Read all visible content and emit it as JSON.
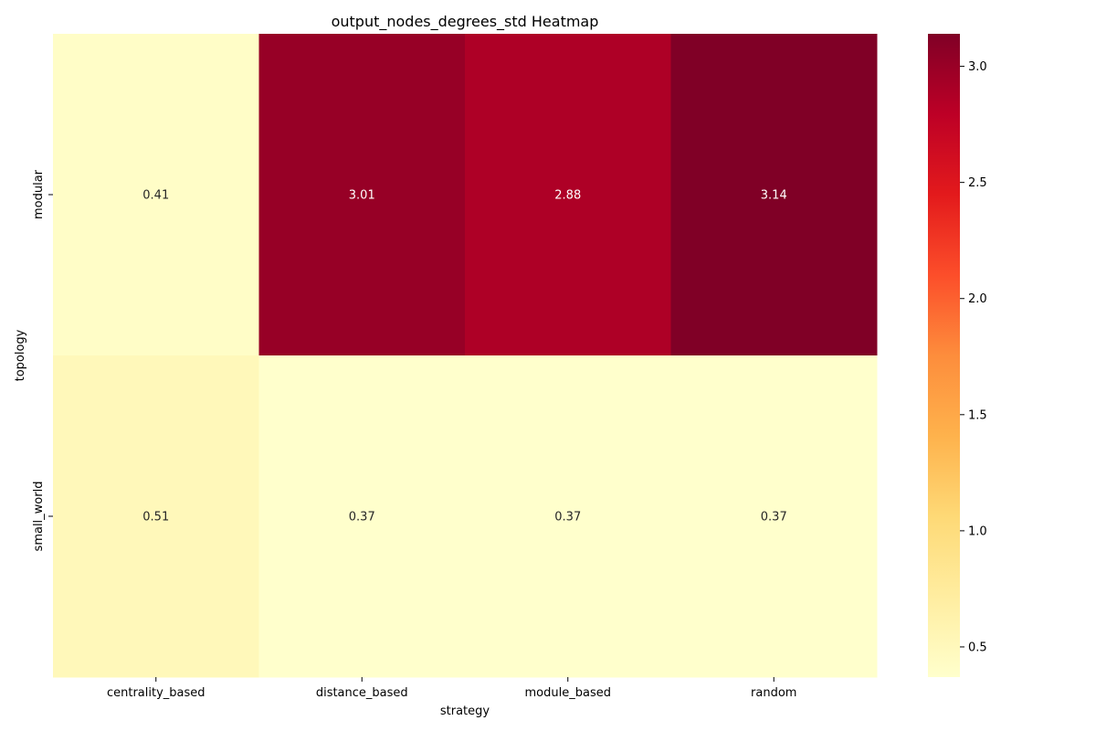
{
  "chart_data": {
    "type": "heatmap",
    "title": "output_nodes_degrees_std Heatmap",
    "xlabel": "strategy",
    "ylabel": "topology",
    "x_categories": [
      "centrality_based",
      "distance_based",
      "module_based",
      "random"
    ],
    "y_categories": [
      "modular",
      "small_world"
    ],
    "values": [
      [
        0.41,
        3.01,
        2.88,
        3.14
      ],
      [
        0.51,
        0.37,
        0.37,
        0.37
      ]
    ],
    "cell_labels": [
      [
        "0.41",
        "3.01",
        "2.88",
        "3.14"
      ],
      [
        "0.51",
        "0.37",
        "0.37",
        "0.37"
      ]
    ],
    "colormap": "YlOrRd",
    "color_range": [
      0.37,
      3.14
    ],
    "colorbar_ticks": [
      "0.5",
      "1.0",
      "1.5",
      "2.0",
      "2.5",
      "3.0"
    ],
    "colorbar_tick_values": [
      0.5,
      1.0,
      1.5,
      2.0,
      2.5,
      3.0
    ]
  }
}
